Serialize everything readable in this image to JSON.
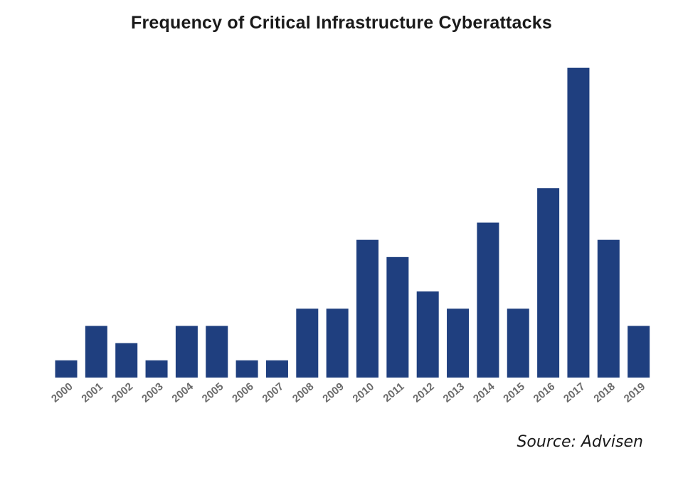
{
  "colors": {
    "bar": "#1f3f7f",
    "tick_label": "#6b6b6b",
    "title": "#1a1a1a"
  },
  "chart_data": {
    "type": "bar",
    "title": "Frequency of Critical Infrastructure Cyberattacks",
    "xlabel": "",
    "ylabel": "",
    "y_axis_visible": false,
    "grid": false,
    "categories": [
      "2000",
      "2001",
      "2002",
      "2003",
      "2004",
      "2005",
      "2006",
      "2007",
      "2008",
      "2009",
      "2010",
      "2011",
      "2012",
      "2013",
      "2014",
      "2015",
      "2016",
      "2017",
      "2018",
      "2019"
    ],
    "values": [
      1,
      3,
      2,
      1,
      3,
      3,
      1,
      1,
      4,
      4,
      8,
      7,
      5,
      4,
      9,
      4,
      11,
      18,
      8,
      3
    ],
    "ylim": [
      0,
      18
    ]
  },
  "source": "Source: Advisen"
}
